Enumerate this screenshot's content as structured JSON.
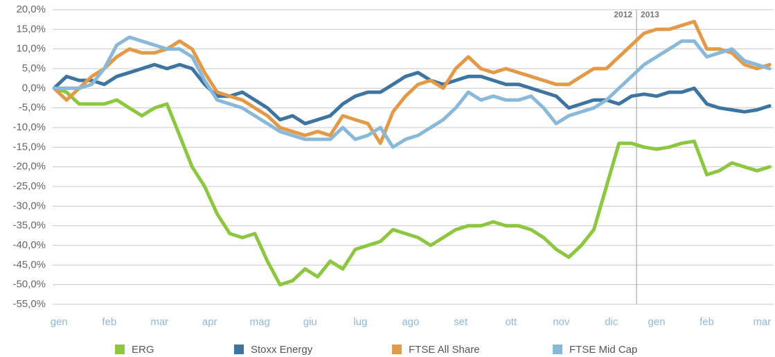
{
  "chart_data": {
    "type": "line",
    "x": [
      0,
      0.25,
      0.5,
      0.75,
      1,
      1.25,
      1.5,
      1.75,
      2,
      2.25,
      2.5,
      2.75,
      3,
      3.25,
      3.5,
      3.75,
      4,
      4.25,
      4.5,
      4.75,
      5,
      5.25,
      5.5,
      5.75,
      6,
      6.25,
      6.5,
      6.75,
      7,
      7.25,
      7.5,
      7.75,
      8,
      8.25,
      8.5,
      8.75,
      9,
      9.25,
      9.5,
      9.75,
      10,
      10.25,
      10.5,
      10.75,
      11,
      11.25,
      11.5,
      11.75,
      12,
      12.25,
      12.5,
      12.75,
      13,
      13.25,
      13.5,
      13.75,
      14,
      14.25
    ],
    "series": [
      {
        "name": "ERG",
        "color": "#8dc63f",
        "values": [
          0,
          -1,
          -4,
          -4,
          -4,
          -3,
          -5,
          -7,
          -5,
          -4,
          -12,
          -20,
          -25,
          -32,
          -37,
          -38,
          -37,
          -44,
          -50,
          -49,
          -46,
          -48,
          -44,
          -46,
          -41,
          -40,
          -39,
          -36,
          -37,
          -38,
          -40,
          -38,
          -36,
          -35,
          -35,
          -34,
          -35,
          -35,
          -36,
          -38,
          -41,
          -43,
          -40,
          -36,
          -25,
          -14,
          -14,
          -15,
          -15.5,
          -15,
          -14,
          -13.5,
          -22,
          -21,
          -19,
          -20,
          -21,
          -20
        ]
      },
      {
        "name": "Stoxx Energy",
        "color": "#3d74a0",
        "values": [
          0,
          3,
          2,
          2,
          1,
          3,
          4,
          5,
          6,
          5,
          6,
          5,
          1,
          -2,
          -2,
          -1,
          -3,
          -5,
          -8,
          -7,
          -9,
          -8,
          -7,
          -4,
          -2,
          -1,
          -1,
          1,
          3,
          4,
          2,
          1,
          2,
          3,
          3,
          2,
          1,
          1,
          0,
          -1,
          -2,
          -5,
          -4,
          -3,
          -3,
          -4,
          -2,
          -1.5,
          -2,
          -1,
          -1,
          0,
          -4,
          -5,
          -5.5,
          -6,
          -5.5,
          -4.5
        ]
      },
      {
        "name": "FTSE All Share",
        "color": "#e39a47",
        "values": [
          0,
          -3,
          0,
          3,
          5,
          8,
          10,
          9,
          9,
          10,
          12,
          10,
          4,
          -1,
          -2,
          -3,
          -5,
          -7,
          -10,
          -11,
          -12,
          -11,
          -12,
          -7,
          -8,
          -9,
          -14,
          -6,
          -2,
          1,
          2,
          0,
          5,
          8,
          5,
          4,
          5,
          4,
          3,
          2,
          1,
          1,
          3,
          5,
          5,
          8,
          11,
          14,
          15,
          15,
          16,
          17,
          10,
          10,
          9,
          6,
          5,
          6
        ]
      },
      {
        "name": "FTSE Mid Cap",
        "color": "#8ab8d9",
        "values": [
          0,
          0,
          0,
          1,
          5,
          11,
          13,
          12,
          11,
          10,
          10,
          8,
          2,
          -3,
          -4,
          -5,
          -7,
          -9,
          -11,
          -12,
          -13,
          -13,
          -13,
          -10,
          -13,
          -12,
          -10,
          -15,
          -13,
          -12,
          -10,
          -8,
          -5,
          -1,
          -3,
          -2,
          -3,
          -3,
          -2,
          -5,
          -9,
          -7,
          -6,
          -5,
          -3,
          0,
          3,
          6,
          8,
          10,
          12,
          12,
          8,
          9,
          10,
          7,
          6,
          5
        ]
      }
    ],
    "xlim": [
      0,
      14.33
    ],
    "xticks": [
      {
        "value": 0.1,
        "label": "gen"
      },
      {
        "value": 1.1,
        "label": "feb"
      },
      {
        "value": 2.1,
        "label": "mar"
      },
      {
        "value": 3.1,
        "label": "apr"
      },
      {
        "value": 4.1,
        "label": "mag"
      },
      {
        "value": 5.1,
        "label": "giu"
      },
      {
        "value": 6.1,
        "label": "lug"
      },
      {
        "value": 7.1,
        "label": "ago"
      },
      {
        "value": 8.1,
        "label": "set"
      },
      {
        "value": 9.1,
        "label": "ott"
      },
      {
        "value": 10.1,
        "label": "nov"
      },
      {
        "value": 11.1,
        "label": "dic"
      },
      {
        "value": 12,
        "label": "gen"
      },
      {
        "value": 13,
        "label": "feb"
      },
      {
        "value": 14.1,
        "label": "mar"
      }
    ],
    "ylim": [
      -55,
      20
    ],
    "yticks": [
      {
        "value": 20,
        "label": "20,0%"
      },
      {
        "value": 15,
        "label": "15,0%"
      },
      {
        "value": 10,
        "label": "10,0%"
      },
      {
        "value": 5,
        "label": "5,0%"
      },
      {
        "value": 0,
        "label": "0,0%"
      },
      {
        "value": -5,
        "label": "-5,0%"
      },
      {
        "value": -10,
        "label": "-10,0%"
      },
      {
        "value": -15,
        "label": "-15,0%"
      },
      {
        "value": -20,
        "label": "-20,0%"
      },
      {
        "value": -25,
        "label": "-25,0%"
      },
      {
        "value": -30,
        "label": "-30,0%"
      },
      {
        "value": -35,
        "label": "-35,0%"
      },
      {
        "value": -40,
        "label": "-40,0%"
      },
      {
        "value": -45,
        "label": "-45,0%"
      },
      {
        "value": -50,
        "label": "-50,0%"
      },
      {
        "value": -55,
        "label": "-55,0%"
      }
    ],
    "grid": true,
    "annotations": [
      {
        "text": "2012",
        "x": 11.6
      },
      {
        "text": "2013",
        "x": 11.6
      }
    ]
  }
}
